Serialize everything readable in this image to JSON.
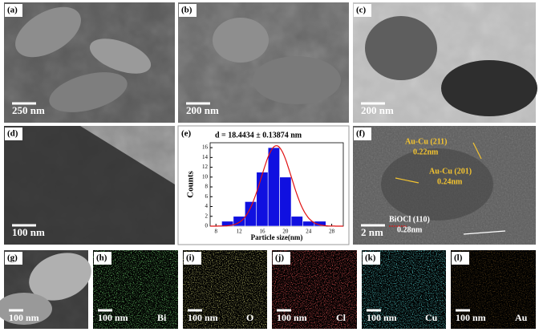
{
  "panels": [
    {
      "label": "(a)",
      "scale": "250 nm"
    },
    {
      "label": "(b)",
      "scale": "200 nm"
    },
    {
      "label": "(c)",
      "scale": "200 nm"
    },
    {
      "label": "(d)",
      "scale": "100 nm"
    },
    {
      "label": "(e)"
    },
    {
      "label": "(f)",
      "scale": "2 nm"
    },
    {
      "label": "(g)",
      "scale": "100 nm"
    },
    {
      "label": "(h)",
      "scale": "100 nm",
      "element": "Bi"
    },
    {
      "label": "(i)",
      "scale": "100 nm",
      "element": "O"
    },
    {
      "label": "(j)",
      "scale": "100 nm",
      "element": "Cl"
    },
    {
      "label": "(k)",
      "scale": "100 nm",
      "element": "Cu"
    },
    {
      "label": "(l)",
      "scale": "100 nm",
      "element": "Au"
    }
  ],
  "hrtem_annotations": [
    {
      "phase": "Au-Cu (211)",
      "spacing": "0.22nm"
    },
    {
      "phase": "Au-Cu (201)",
      "spacing": "0.24nm"
    },
    {
      "phase": "BiOCl (110)",
      "spacing": "0.28nm"
    }
  ],
  "chart_data": {
    "type": "histogram",
    "annotation": "d = 18.4434 ± 0.13874 nm",
    "x_label": "Particle size(nm)",
    "y_label": "Counts",
    "bins": [
      9,
      11,
      13,
      15,
      17,
      19,
      21,
      23,
      25,
      27
    ],
    "values": [
      1,
      2,
      5,
      11,
      16,
      10,
      2,
      1,
      1
    ],
    "color": "#1010e0",
    "fit": {
      "center": 18.4434,
      "width": 2.6,
      "peak": 16.4,
      "color": "#e01010"
    },
    "xlim": [
      7,
      30
    ],
    "xticks": [
      8,
      12,
      16,
      20,
      24,
      28
    ],
    "ylim": [
      0,
      17
    ],
    "yticks": [
      0,
      2,
      4,
      6,
      8,
      10,
      12,
      14,
      16
    ]
  }
}
